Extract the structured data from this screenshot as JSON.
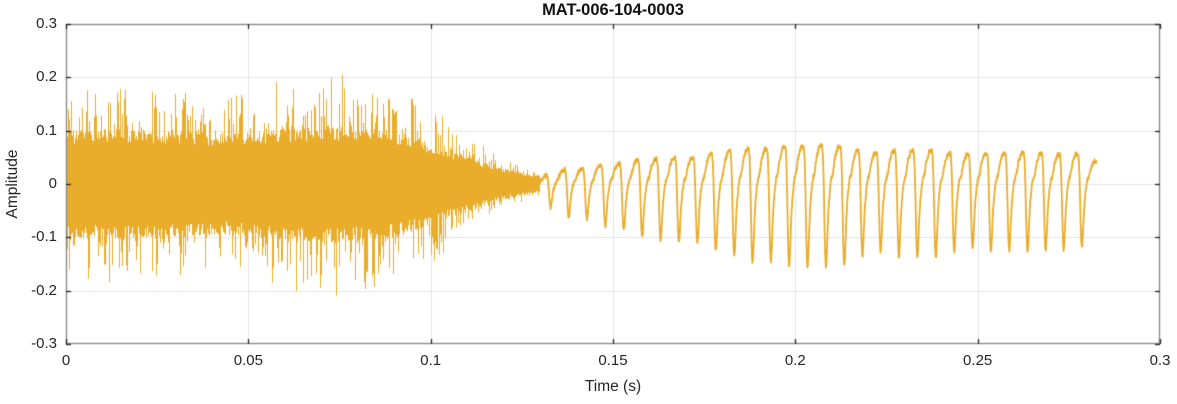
{
  "chart_data": {
    "type": "line",
    "title": "MAT-006-104-0003",
    "xlabel": "Time (s)",
    "ylabel": "Amplitude",
    "xlim": [
      0,
      0.3
    ],
    "ylim": [
      -0.3,
      0.3
    ],
    "xticks": [
      0,
      0.05,
      0.1,
      0.15,
      0.2,
      0.25,
      0.3
    ],
    "xtick_labels": [
      "0",
      "0.05",
      "0.1",
      "0.15",
      "0.2",
      "0.25",
      "0.3"
    ],
    "yticks": [
      -0.3,
      -0.2,
      -0.1,
      0,
      0.1,
      0.2,
      0.3
    ],
    "ytick_labels": [
      "-0.3",
      "-0.2",
      "-0.1",
      "0",
      "0.1",
      "0.2",
      "0.3"
    ],
    "grid": true,
    "legend": null,
    "colors": {
      "line": "#E9AD2B",
      "grid": "#E6E6E6",
      "axis_box": "#8C8C8C",
      "tick": "#262626",
      "text": "#262626",
      "background": "#FFFFFF"
    },
    "signal": {
      "description": "speech-like audio waveform: unvoiced broadband noise burst 0-0.13 s, then voiced quasi-periodic ~200 Hz segment 0.13-0.283 s, abrupt end",
      "seed": 7,
      "noise_segment": {
        "t_start": 0,
        "t_end": 0.1295,
        "core_envelope": [
          [
            0,
            0.095
          ],
          [
            0.015,
            0.1
          ],
          [
            0.03,
            0.095
          ],
          [
            0.045,
            0.09
          ],
          [
            0.06,
            0.1
          ],
          [
            0.075,
            0.105
          ],
          [
            0.09,
            0.095
          ],
          [
            0.1,
            0.075
          ],
          [
            0.105,
            0.06
          ],
          [
            0.11,
            0.05
          ],
          [
            0.115,
            0.038
          ],
          [
            0.12,
            0.028
          ],
          [
            0.125,
            0.02
          ],
          [
            0.1295,
            0.015
          ]
        ],
        "peak_envelope": [
          [
            0,
            0.16
          ],
          [
            0.01,
            0.19
          ],
          [
            0.02,
            0.17
          ],
          [
            0.03,
            0.18
          ],
          [
            0.04,
            0.16
          ],
          [
            0.05,
            0.17
          ],
          [
            0.06,
            0.2
          ],
          [
            0.07,
            0.21
          ],
          [
            0.077,
            0.23
          ],
          [
            0.085,
            0.19
          ],
          [
            0.09,
            0.17
          ],
          [
            0.095,
            0.16
          ],
          [
            0.1,
            0.15
          ],
          [
            0.105,
            0.12
          ],
          [
            0.11,
            0.09
          ],
          [
            0.115,
            0.07
          ],
          [
            0.12,
            0.05
          ],
          [
            0.125,
            0.035
          ],
          [
            0.1295,
            0.022
          ]
        ]
      },
      "voiced_segment": {
        "t_start": 0.1295,
        "t_end": 0.2827,
        "f0_hz": 200,
        "amp_envelope": [
          [
            0.1295,
            0.02
          ],
          [
            0.133,
            0.045
          ],
          [
            0.138,
            0.06
          ],
          [
            0.145,
            0.075
          ],
          [
            0.155,
            0.09
          ],
          [
            0.165,
            0.105
          ],
          [
            0.175,
            0.12
          ],
          [
            0.185,
            0.135
          ],
          [
            0.195,
            0.15
          ],
          [
            0.205,
            0.152
          ],
          [
            0.215,
            0.143
          ],
          [
            0.225,
            0.135
          ],
          [
            0.235,
            0.132
          ],
          [
            0.245,
            0.13
          ],
          [
            0.255,
            0.128
          ],
          [
            0.263,
            0.124
          ],
          [
            0.27,
            0.12
          ],
          [
            0.2745,
            0.125
          ],
          [
            0.278,
            0.115
          ],
          [
            0.281,
            0.1
          ],
          [
            0.2827,
            0.095
          ]
        ],
        "harmonics": [
          [
            1,
            1.0,
            0.0
          ],
          [
            2,
            0.52,
            2.4
          ],
          [
            3,
            0.28,
            4.6
          ],
          [
            4,
            0.12,
            0.8
          ],
          [
            5,
            0.06,
            3.1
          ]
        ]
      }
    }
  }
}
